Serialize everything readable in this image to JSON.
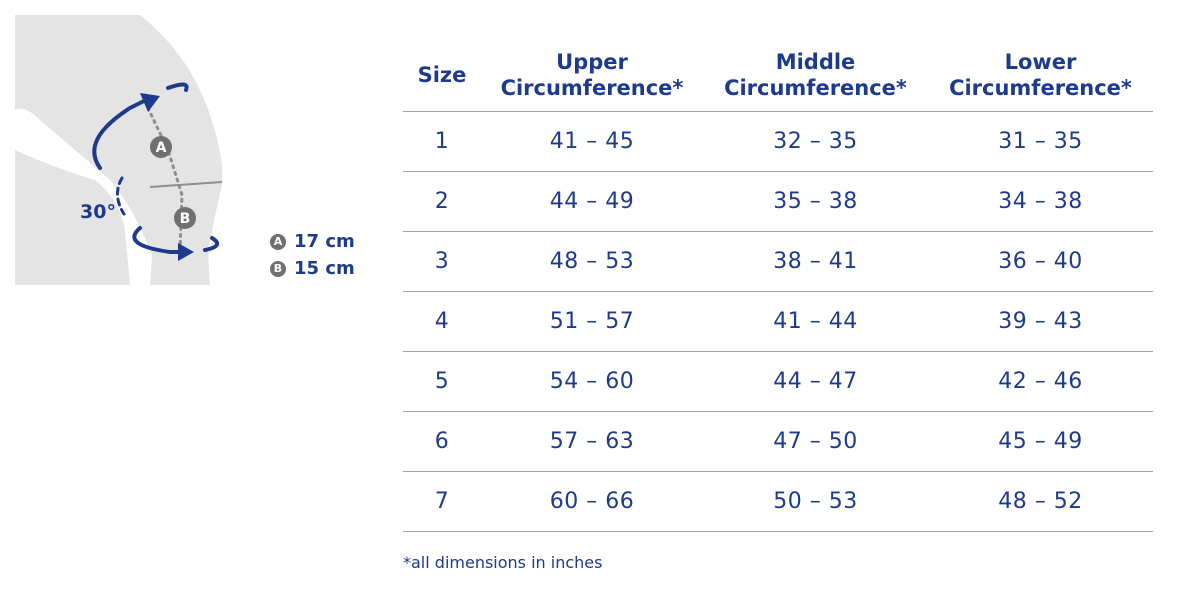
{
  "diagram": {
    "angle_label": "30°",
    "point_a": "A",
    "point_b": "B",
    "colors": {
      "leg": "#e4e4e4",
      "arrow": "#1e3a8c",
      "badge": "#6f6f6f"
    }
  },
  "legend": {
    "items": [
      {
        "badge": "A",
        "value": "17 cm"
      },
      {
        "badge": "B",
        "value": "15 cm"
      }
    ]
  },
  "table": {
    "headers": {
      "size": "Size",
      "upper_line1": "Upper",
      "upper_line2": "Circumference*",
      "middle_line1": "Middle",
      "middle_line2": "Circumference*",
      "lower_line1": "Lower",
      "lower_line2": "Circumference*"
    },
    "rows": [
      {
        "size": "1",
        "upper": "41 – 45",
        "middle": "32 – 35",
        "lower": "31 – 35"
      },
      {
        "size": "2",
        "upper": "44 – 49",
        "middle": "35 – 38",
        "lower": "34 – 38"
      },
      {
        "size": "3",
        "upper": "48 – 53",
        "middle": "38 – 41",
        "lower": "36 – 40"
      },
      {
        "size": "4",
        "upper": "51 – 57",
        "middle": "41 – 44",
        "lower": "39 – 43"
      },
      {
        "size": "5",
        "upper": "54 – 60",
        "middle": "44 – 47",
        "lower": "42 – 46"
      },
      {
        "size": "6",
        "upper": "57 – 63",
        "middle": "47 – 50",
        "lower": "45 – 49"
      },
      {
        "size": "7",
        "upper": "60 – 66",
        "middle": "50 – 53",
        "lower": "48 – 52"
      }
    ]
  },
  "footnote": "*all dimensions in inches"
}
